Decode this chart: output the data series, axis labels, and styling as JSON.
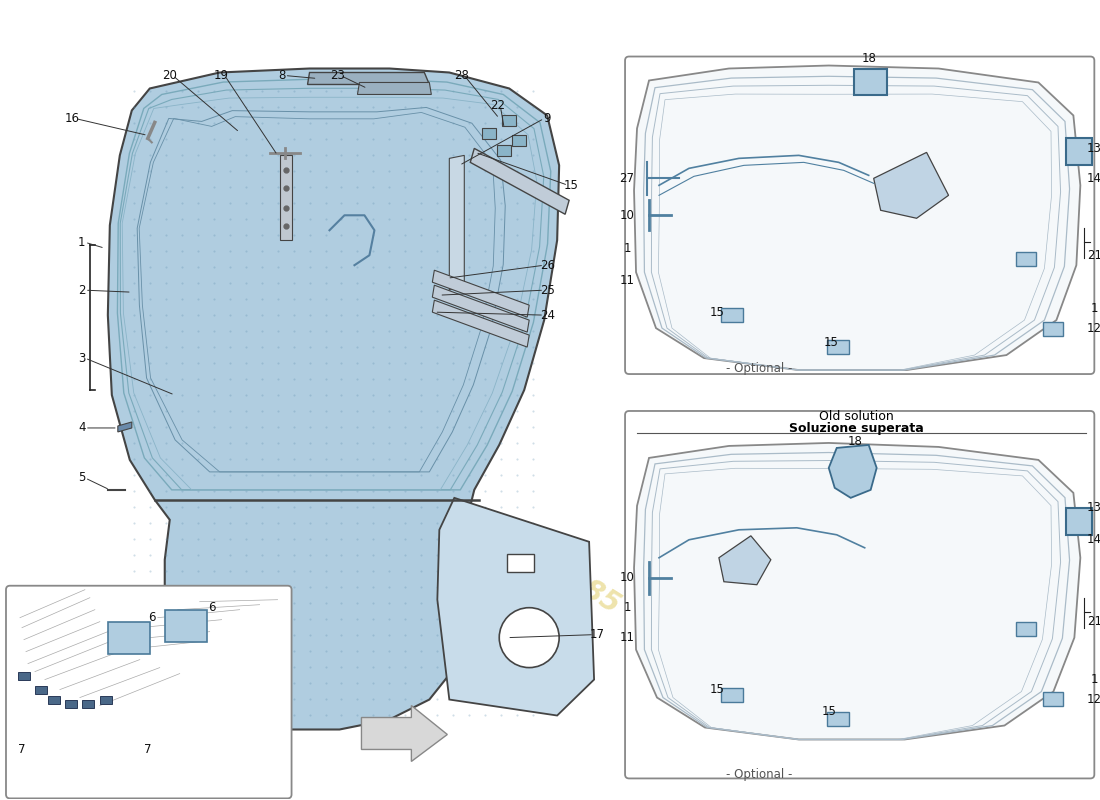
{
  "bg_color": "#ffffff",
  "light_blue": "#b0cde0",
  "light_blue2": "#c8dcea",
  "mid_blue": "#8ab0cc",
  "dark_blue": "#5a8aaa",
  "outline_color": "#444444",
  "line_color": "#222222",
  "text_color": "#111111",
  "watermark_color": "#ddc85a",
  "panel_bg": "#f8f8f8",
  "optional_text": "- Optional -",
  "old_solution_line1": "Soluzione superata",
  "old_solution_line2": "Old solution"
}
